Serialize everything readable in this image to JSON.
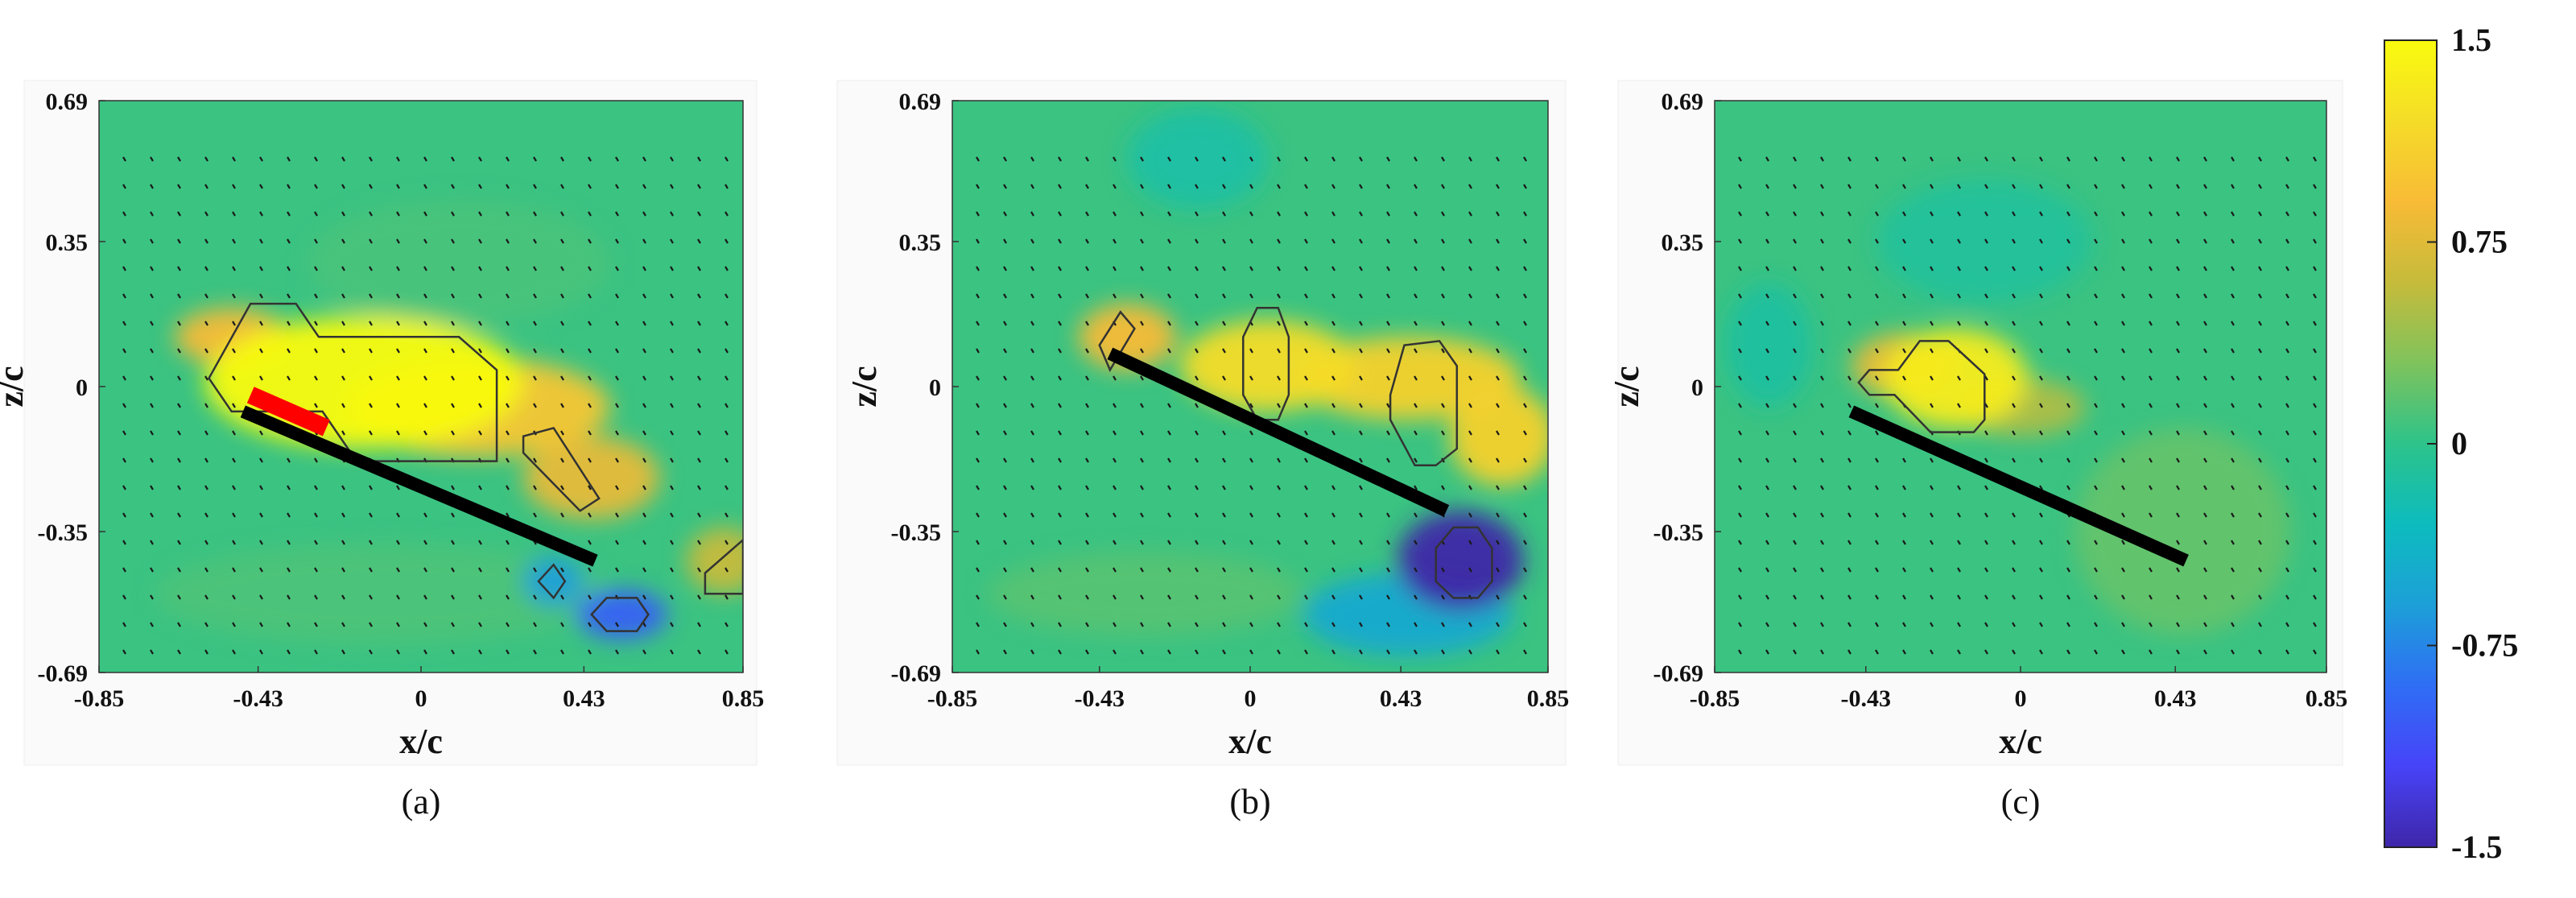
{
  "chart_data": [
    {
      "type": "heatmap",
      "caption": "(a)",
      "xlabel": "x/c",
      "ylabel": "z/c",
      "xticks": [
        "-0.85",
        "-0.43",
        "0",
        "0.43",
        "0.85"
      ],
      "yticks": [
        "0.69",
        "0.35",
        "0",
        "-0.35",
        "-0.69"
      ],
      "xlim": [
        -0.85,
        0.85
      ],
      "ylim": [
        -0.69,
        0.69
      ],
      "blobs": [
        {
          "x": -0.15,
          "z": 0.01,
          "rx": 0.42,
          "rz": 0.16,
          "v": 1.5
        },
        {
          "x": 0.15,
          "z": -0.05,
          "rx": 0.35,
          "rz": 0.12,
          "v": 1.0
        },
        {
          "x": 0.45,
          "z": -0.22,
          "rx": 0.18,
          "rz": 0.1,
          "v": 0.8
        },
        {
          "x": 0.8,
          "z": -0.42,
          "rx": 0.1,
          "rz": 0.08,
          "v": 0.6
        },
        {
          "x": -0.5,
          "z": 0.12,
          "rx": 0.15,
          "rz": 0.07,
          "v": 0.9
        },
        {
          "x": 0.53,
          "z": -0.55,
          "rx": 0.12,
          "rz": 0.06,
          "v": -1.0
        },
        {
          "x": 0.35,
          "z": -0.47,
          "rx": 0.08,
          "rz": 0.06,
          "v": -0.6
        },
        {
          "x": -0.1,
          "z": -0.5,
          "rx": 0.6,
          "rz": 0.12,
          "v": 0.12
        },
        {
          "x": 0.1,
          "z": 0.3,
          "rx": 0.4,
          "rz": 0.15,
          "v": 0.1
        }
      ],
      "contours": [
        [
          [
            -0.56,
            0.02
          ],
          [
            -0.45,
            0.2
          ],
          [
            -0.33,
            0.2
          ],
          [
            -0.27,
            0.12
          ],
          [
            0.1,
            0.12
          ],
          [
            0.2,
            0.04
          ],
          [
            0.2,
            -0.18
          ],
          [
            -0.17,
            -0.18
          ],
          [
            -0.26,
            -0.06
          ],
          [
            -0.5,
            -0.06
          ],
          [
            -0.56,
            0.02
          ]
        ],
        [
          [
            0.27,
            -0.12
          ],
          [
            0.35,
            -0.1
          ],
          [
            0.47,
            -0.27
          ],
          [
            0.42,
            -0.3
          ],
          [
            0.27,
            -0.16
          ],
          [
            0.27,
            -0.12
          ]
        ],
        [
          [
            0.31,
            -0.47
          ],
          [
            0.35,
            -0.43
          ],
          [
            0.38,
            -0.47
          ],
          [
            0.35,
            -0.51
          ],
          [
            0.31,
            -0.47
          ]
        ],
        [
          [
            0.45,
            -0.55
          ],
          [
            0.49,
            -0.51
          ],
          [
            0.57,
            -0.51
          ],
          [
            0.6,
            -0.55
          ],
          [
            0.57,
            -0.59
          ],
          [
            0.49,
            -0.59
          ],
          [
            0.45,
            -0.55
          ]
        ],
        [
          [
            0.75,
            -0.45
          ],
          [
            0.85,
            -0.37
          ],
          [
            0.85,
            -0.5
          ],
          [
            0.75,
            -0.5
          ],
          [
            0.75,
            -0.45
          ]
        ]
      ],
      "plates": [
        {
          "x0": -0.47,
          "z0": -0.06,
          "x1": 0.46,
          "z1": -0.42,
          "color": "#000000"
        },
        {
          "x0": -0.45,
          "z0": -0.02,
          "x1": -0.25,
          "z1": -0.1,
          "color": "#ff0000"
        }
      ]
    },
    {
      "type": "heatmap",
      "caption": "(b)",
      "xlabel": "x/c",
      "ylabel": "z/c",
      "xticks": [
        "-0.85",
        "-0.43",
        "0",
        "0.43",
        "0.85"
      ],
      "yticks": [
        "0.69",
        "0.35",
        "0",
        "-0.35",
        "-0.69"
      ],
      "xlim": [
        -0.85,
        0.85
      ],
      "ylim": [
        -0.69,
        0.69
      ],
      "blobs": [
        {
          "x": -0.35,
          "z": 0.12,
          "rx": 0.14,
          "rz": 0.08,
          "v": 0.9
        },
        {
          "x": 0.05,
          "z": 0.05,
          "rx": 0.25,
          "rz": 0.11,
          "v": 1.2
        },
        {
          "x": 0.45,
          "z": 0.02,
          "rx": 0.32,
          "rz": 0.1,
          "v": 1.1
        },
        {
          "x": 0.72,
          "z": -0.12,
          "rx": 0.15,
          "rz": 0.12,
          "v": 1.1
        },
        {
          "x": 0.6,
          "z": -0.42,
          "rx": 0.18,
          "rz": 0.12,
          "v": -1.55
        },
        {
          "x": 0.45,
          "z": -0.55,
          "rx": 0.3,
          "rz": 0.1,
          "v": -0.5
        },
        {
          "x": -0.15,
          "z": 0.55,
          "rx": 0.2,
          "rz": 0.12,
          "v": -0.15
        },
        {
          "x": -0.3,
          "z": -0.5,
          "rx": 0.45,
          "rz": 0.1,
          "v": 0.15
        }
      ],
      "contours": [
        [
          [
            -0.43,
            0.1
          ],
          [
            -0.37,
            0.18
          ],
          [
            -0.33,
            0.14
          ],
          [
            -0.4,
            0.04
          ],
          [
            -0.43,
            0.1
          ]
        ],
        [
          [
            -0.02,
            0.12
          ],
          [
            0.02,
            0.19
          ],
          [
            0.08,
            0.19
          ],
          [
            0.11,
            0.12
          ],
          [
            0.11,
            -0.02
          ],
          [
            0.08,
            -0.08
          ],
          [
            0.02,
            -0.08
          ],
          [
            -0.02,
            -0.02
          ],
          [
            -0.02,
            0.12
          ]
        ],
        [
          [
            0.4,
            -0.02
          ],
          [
            0.44,
            0.1
          ],
          [
            0.54,
            0.11
          ],
          [
            0.59,
            0.05
          ],
          [
            0.59,
            -0.15
          ],
          [
            0.53,
            -0.19
          ],
          [
            0.47,
            -0.19
          ],
          [
            0.4,
            -0.08
          ],
          [
            0.4,
            -0.02
          ]
        ],
        [
          [
            0.53,
            -0.39
          ],
          [
            0.58,
            -0.34
          ],
          [
            0.65,
            -0.34
          ],
          [
            0.69,
            -0.39
          ],
          [
            0.69,
            -0.47
          ],
          [
            0.65,
            -0.51
          ],
          [
            0.58,
            -0.51
          ],
          [
            0.53,
            -0.47
          ],
          [
            0.53,
            -0.39
          ]
        ]
      ],
      "plates": [
        {
          "x0": -0.4,
          "z0": 0.08,
          "x1": 0.56,
          "z1": -0.3,
          "color": "#000000"
        }
      ]
    },
    {
      "type": "heatmap",
      "caption": "(c)",
      "xlabel": "x/c",
      "ylabel": "z/c",
      "xticks": [
        "-0.85",
        "-0.43",
        "0",
        "0.43",
        "0.85"
      ],
      "yticks": [
        "0.69",
        "0.35",
        "0",
        "-0.35",
        "-0.69"
      ],
      "xlim": [
        -0.85,
        0.85
      ],
      "ylim": [
        -0.69,
        0.69
      ],
      "blobs": [
        {
          "x": -0.18,
          "z": 0.02,
          "rx": 0.2,
          "rz": 0.12,
          "v": 1.35
        },
        {
          "x": -0.32,
          "z": 0.05,
          "rx": 0.15,
          "rz": 0.08,
          "v": 0.8
        },
        {
          "x": 0.0,
          "z": -0.05,
          "rx": 0.18,
          "rz": 0.07,
          "v": 0.5
        },
        {
          "x": 0.45,
          "z": -0.35,
          "rx": 0.3,
          "rz": 0.25,
          "v": 0.2
        },
        {
          "x": -0.7,
          "z": 0.1,
          "rx": 0.12,
          "rz": 0.15,
          "v": -0.12
        },
        {
          "x": -0.1,
          "z": 0.35,
          "rx": 0.3,
          "rz": 0.15,
          "v": -0.1
        }
      ],
      "contours": [
        [
          [
            -0.45,
            0.01
          ],
          [
            -0.42,
            0.04
          ],
          [
            -0.34,
            0.04
          ],
          [
            -0.28,
            0.11
          ],
          [
            -0.2,
            0.11
          ],
          [
            -0.1,
            0.03
          ],
          [
            -0.1,
            -0.08
          ],
          [
            -0.13,
            -0.11
          ],
          [
            -0.25,
            -0.11
          ],
          [
            -0.35,
            -0.02
          ],
          [
            -0.42,
            -0.02
          ],
          [
            -0.45,
            0.01
          ]
        ]
      ],
      "plates": [
        {
          "x0": -0.47,
          "z0": -0.06,
          "x1": 0.46,
          "z1": -0.42,
          "color": "#000000"
        }
      ]
    }
  ],
  "colorbar": {
    "ticks": [
      "1.5",
      "0.75",
      "0",
      "-0.75",
      "-1.5"
    ],
    "range": [
      -1.5,
      1.5
    ],
    "colormap": "parula",
    "stops": [
      "#3e26a8",
      "#4743f8",
      "#2f6ef5",
      "#1d9fd8",
      "#0cbcbe",
      "#2dc38a",
      "#7fc35c",
      "#c6bb3b",
      "#f8bb36",
      "#f5dc28",
      "#f9fb0e"
    ],
    "background_value": 0.05
  }
}
